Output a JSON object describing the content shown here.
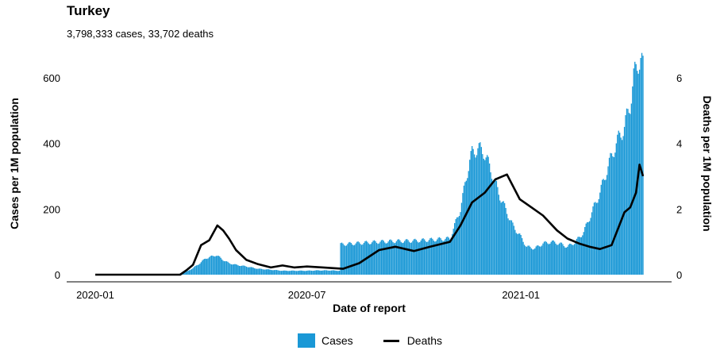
{
  "header": {
    "title": "Turkey",
    "subtitle": "3,798,333 cases, 33,702 deaths"
  },
  "colors": {
    "cases": "#1a98d6",
    "deaths": "#000000"
  },
  "legend": {
    "cases_label": "Cases",
    "deaths_label": "Deaths"
  },
  "chart_data": {
    "type": "bar",
    "title": "Turkey",
    "subtitle": "3,798,333 cases, 33,702 deaths",
    "xlabel": "Date of report",
    "ylabel": "Cases per 1M population",
    "y2label": "Deaths per 1M population",
    "x_ticks": [
      "2020-01",
      "2020-07",
      "2021-01"
    ],
    "y_ticks": [
      0,
      200,
      400,
      600
    ],
    "y2_ticks": [
      0,
      2,
      4,
      6
    ],
    "ylim": [
      0,
      660
    ],
    "y2lim": [
      0,
      6.6
    ],
    "legend_position": "bottom",
    "grid": false,
    "series": [
      {
        "name": "Cases",
        "type": "bar",
        "axis": "left",
        "x": [
          "2020-01-01",
          "2020-03-11",
          "2020-03-20",
          "2020-03-25",
          "2020-03-31",
          "2020-04-05",
          "2020-04-10",
          "2020-04-14",
          "2020-04-20",
          "2020-04-25",
          "2020-05-01",
          "2020-05-10",
          "2020-05-20",
          "2020-05-31",
          "2020-06-10",
          "2020-06-20",
          "2020-07-01",
          "2020-07-10",
          "2020-07-20",
          "2020-07-29",
          "2020-07-30",
          "2020-08-15",
          "2020-09-01",
          "2020-09-15",
          "2020-10-01",
          "2020-10-15",
          "2020-11-01",
          "2020-11-10",
          "2020-11-18",
          "2020-11-20",
          "2020-11-25",
          "2020-11-30",
          "2020-12-05",
          "2020-12-10",
          "2020-12-15",
          "2020-12-20",
          "2020-12-25",
          "2020-12-31",
          "2021-01-06",
          "2021-01-13",
          "2021-01-20",
          "2021-01-27",
          "2021-02-03",
          "2021-02-10",
          "2021-02-17",
          "2021-02-24",
          "2021-03-03",
          "2021-03-10",
          "2021-03-17",
          "2021-03-24",
          "2021-03-31",
          "2021-04-05",
          "2021-04-08",
          "2021-04-12",
          "2021-04-14",
          "2021-04-16"
        ],
        "values": [
          0,
          0,
          10,
          20,
          35,
          50,
          55,
          60,
          45,
          35,
          30,
          25,
          18,
          15,
          12,
          12,
          12,
          13,
          13,
          12,
          92,
          96,
          100,
          102,
          103,
          106,
          110,
          200,
          350,
          370,
          385,
          375,
          330,
          280,
          230,
          190,
          150,
          120,
          85,
          80,
          95,
          100,
          95,
          85,
          100,
          130,
          190,
          250,
          330,
          400,
          450,
          520,
          600,
          650,
          660,
          630
        ]
      },
      {
        "name": "Deaths",
        "type": "line",
        "axis": "right",
        "x": [
          "2020-01-01",
          "2020-03-14",
          "2020-03-20",
          "2020-03-25",
          "2020-04-01",
          "2020-04-08",
          "2020-04-15",
          "2020-04-20",
          "2020-04-25",
          "2020-05-01",
          "2020-05-10",
          "2020-05-20",
          "2020-05-31",
          "2020-06-10",
          "2020-06-20",
          "2020-07-01",
          "2020-07-15",
          "2020-08-01",
          "2020-08-15",
          "2020-09-01",
          "2020-09-15",
          "2020-10-01",
          "2020-10-15",
          "2020-11-01",
          "2020-11-10",
          "2020-11-20",
          "2020-12-01",
          "2020-12-10",
          "2020-12-20",
          "2020-12-31",
          "2021-01-10",
          "2021-01-20",
          "2021-02-01",
          "2021-02-10",
          "2021-02-20",
          "2021-03-01",
          "2021-03-10",
          "2021-03-20",
          "2021-03-31",
          "2021-04-05",
          "2021-04-10",
          "2021-04-13",
          "2021-04-16"
        ],
        "values": [
          0,
          0,
          0.15,
          0.3,
          0.9,
          1.05,
          1.5,
          1.35,
          1.1,
          0.75,
          0.45,
          0.32,
          0.22,
          0.28,
          0.22,
          0.25,
          0.22,
          0.18,
          0.35,
          0.75,
          0.85,
          0.72,
          0.85,
          1.0,
          1.5,
          2.2,
          2.5,
          2.9,
          3.05,
          2.3,
          2.05,
          1.8,
          1.35,
          1.1,
          0.95,
          0.85,
          0.78,
          0.9,
          1.9,
          2.05,
          2.5,
          3.35,
          3.0
        ]
      }
    ]
  }
}
